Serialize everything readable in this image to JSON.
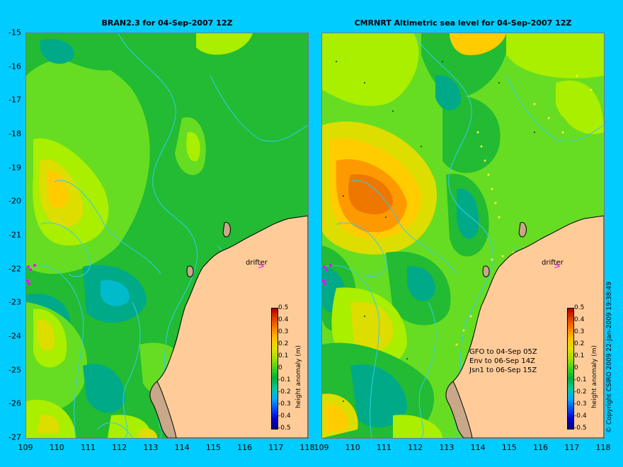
{
  "colors": {
    "background": "#00ccff",
    "land": "#ffcc99",
    "coast": "#000000",
    "drifter": "#ff00ff",
    "contour": "#33ccee"
  },
  "left_panel": {
    "title": "BRAN2.3 for 04-Sep-2007 12Z",
    "drifter_label": "drifter"
  },
  "right_panel": {
    "title": "CMRNRT Altimetric sea level  for 04-Sep-2007 12Z",
    "drifter_label": "drifter",
    "legend": [
      "GFO to 04-Sep 05Z",
      "Env to 06-Sep 14Z",
      "Jsn1 to 06-Sep 15Z"
    ]
  },
  "y_ticks": [
    "-15",
    "-16",
    "-17",
    "-18",
    "-19",
    "-20",
    "-21",
    "-22",
    "-23",
    "-24",
    "-25",
    "-26",
    "-27"
  ],
  "x_ticks": [
    "109",
    "110",
    "111",
    "112",
    "113",
    "114",
    "115",
    "116",
    "117",
    "118"
  ],
  "colorbar": {
    "title": "height anomaly (m)",
    "ticks": [
      "0.5",
      "0.4",
      "0.3",
      "0.2",
      "0.1",
      "0",
      "-0.1",
      "-0.2",
      "-0.3",
      "-0.4",
      "-0.5"
    ],
    "colors": [
      "#000080",
      "#0000cc",
      "#0050ff",
      "#00aaff",
      "#00c8a0",
      "#00b040",
      "#40d020",
      "#a0e000",
      "#e0e000",
      "#ffc000",
      "#ff8000",
      "#e04000",
      "#b00000"
    ]
  },
  "copyright": "© Copyright CSIRO 2009   22-Jan-2009 19:38:49"
}
